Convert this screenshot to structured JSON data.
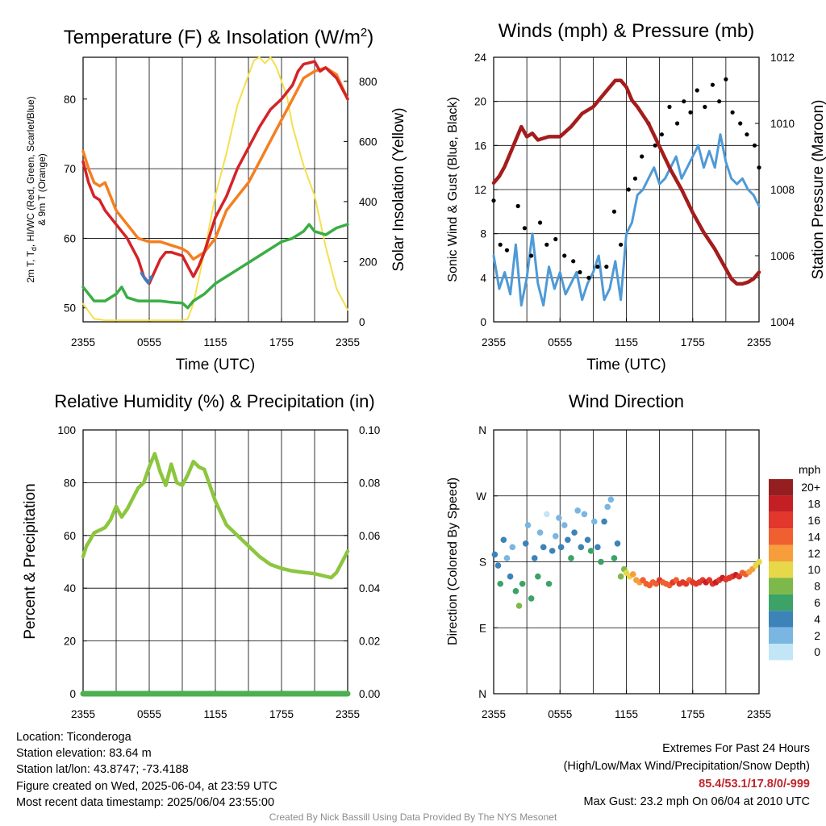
{
  "colors": {
    "temp_2m": "#d42327",
    "dewpoint": "#3aae44",
    "heat_index_windchill": "#3f7cc0",
    "temp_9m": "#f57f20",
    "insolation": "#f5df4d",
    "wind_speed": "#4f9ad6",
    "wind_gust": "#000000",
    "pressure": "#a51c1c",
    "humidity": "#8cc63e",
    "precipitation": "#4caf50"
  },
  "chart_data": [
    {
      "id": "temp",
      "type": "line",
      "title_main": "Temperature (F) & Insolation (W/m",
      "title_sup": "2",
      "title_end": ")",
      "xlabel": "Time (UTC)",
      "ylabel_lines": [
        "2m T, T",
        "HI/WC (Red, Green, Scarlet/Blue)",
        "& 9m T (Orange)"
      ],
      "ylabel_sub": "d",
      "y2label": "Solar Insolation (Yellow)",
      "xlim": [
        0,
        24
      ],
      "ylim": [
        48,
        86
      ],
      "y2lim": [
        0,
        880
      ],
      "xticks": [
        0,
        6,
        12,
        18,
        24
      ],
      "xticklabels": [
        "2355",
        "0555",
        "1155",
        "1755",
        "2355"
      ],
      "yticks": [
        50,
        60,
        70,
        80
      ],
      "y2ticks": [
        0,
        200,
        400,
        600,
        800
      ],
      "grid": true,
      "series": [
        {
          "key": "insolation",
          "axis": "y2",
          "x": [
            0,
            1,
            2,
            3,
            4,
            5,
            6,
            7,
            8,
            9,
            9.5,
            10,
            11,
            12,
            13,
            14,
            15,
            15.5,
            16,
            16.5,
            17,
            17.5,
            18,
            18.5,
            19,
            20,
            21,
            22,
            23,
            24
          ],
          "y": [
            60,
            10,
            5,
            5,
            5,
            5,
            5,
            5,
            5,
            5,
            10,
            60,
            230,
            420,
            560,
            720,
            820,
            870,
            880,
            860,
            880,
            850,
            800,
            750,
            650,
            520,
            420,
            250,
            110,
            40
          ]
        },
        {
          "key": "temp_9m",
          "axis": "y",
          "x": [
            0,
            0.5,
            1,
            1.5,
            2,
            3,
            4,
            5,
            6,
            7,
            8,
            9,
            9.5,
            10,
            10.5,
            11,
            12,
            13,
            14,
            15,
            16,
            17,
            18,
            19,
            20,
            21,
            22,
            23,
            24
          ],
          "y": [
            72.5,
            70,
            68,
            67.5,
            68,
            64,
            62,
            60,
            59.5,
            59.5,
            59,
            58.5,
            58,
            57,
            57.5,
            58,
            60,
            64,
            66,
            68,
            71,
            74,
            77,
            80,
            83,
            84,
            84.5,
            83.5,
            80
          ]
        },
        {
          "key": "temp_2m",
          "axis": "y",
          "x": [
            0,
            0.5,
            1,
            1.5,
            2,
            3,
            4,
            5,
            5.5,
            6,
            7,
            7.5,
            8,
            9,
            9.5,
            10,
            10.5,
            11,
            12,
            13,
            14,
            15,
            16,
            17,
            18,
            19,
            19.5,
            20,
            21,
            21.5,
            22,
            23,
            24
          ],
          "y": [
            71,
            68,
            66,
            65.5,
            64,
            62,
            60,
            57,
            54.5,
            53.5,
            57,
            58,
            58,
            57.5,
            56,
            54.5,
            56,
            58,
            63,
            66,
            70,
            73,
            76,
            78.5,
            80,
            82,
            84,
            85,
            85.4,
            84,
            84.5,
            83,
            80
          ]
        },
        {
          "key": "heat_index_windchill",
          "axis": "y",
          "x": [
            5.3,
            5.6,
            5.9,
            6.2
          ],
          "y": [
            55,
            54.2,
            53.6,
            54.5
          ]
        },
        {
          "key": "dewpoint",
          "axis": "y",
          "x": [
            0,
            1,
            2,
            3,
            3.5,
            4,
            5,
            6,
            7,
            8,
            9,
            9.5,
            10,
            11,
            12,
            13,
            14,
            15,
            16,
            17,
            18,
            19,
            20,
            20.5,
            21,
            22,
            23,
            24
          ],
          "y": [
            53,
            51,
            51,
            52,
            53,
            51.5,
            51,
            51,
            51,
            50.8,
            50.7,
            50,
            51,
            52,
            53.5,
            54.5,
            55.5,
            56.5,
            57.5,
            58.5,
            59.5,
            60,
            61,
            62,
            61,
            60.5,
            61.5,
            62
          ]
        }
      ]
    },
    {
      "id": "wind",
      "type": "line",
      "title": "Winds (mph) & Pressure (mb)",
      "xlabel": "Time (UTC)",
      "ylabel": "Sonic Wind & Gust (Blue, Black)",
      "y2label": "Station Pressure (Maroon)",
      "xlim": [
        0,
        24
      ],
      "ylim": [
        0,
        24
      ],
      "y2lim": [
        1004,
        1012
      ],
      "xticks": [
        0,
        6,
        12,
        18,
        24
      ],
      "xticklabels": [
        "2355",
        "0555",
        "1155",
        "1755",
        "2355"
      ],
      "yticks": [
        0,
        4,
        8,
        12,
        16,
        20,
        24
      ],
      "y2ticks": [
        1004,
        1006,
        1008,
        1010,
        1012
      ],
      "grid": true,
      "series": [
        {
          "key": "wind_speed",
          "axis": "y",
          "x": [
            0,
            0.5,
            1,
            1.5,
            2,
            2.5,
            3,
            3.5,
            4,
            4.5,
            5,
            5.5,
            6,
            6.5,
            7,
            7.5,
            8,
            8.5,
            9,
            9.5,
            10,
            10.5,
            11,
            11.5,
            12,
            12.5,
            13,
            13.5,
            14,
            14.5,
            15,
            15.5,
            16,
            16.5,
            17,
            17.5,
            18,
            18.5,
            19,
            19.5,
            20,
            20.5,
            21,
            21.5,
            22,
            22.5,
            23,
            23.5,
            24
          ],
          "y": [
            6,
            3,
            4.5,
            2.5,
            7,
            1.5,
            4,
            8,
            3.5,
            1.5,
            5,
            3,
            4.5,
            2.5,
            3.5,
            4.5,
            2,
            3.5,
            4.5,
            6,
            2,
            3,
            5.5,
            2,
            8,
            9,
            11.5,
            12,
            13,
            14,
            12.5,
            13,
            14,
            15,
            13,
            14,
            15,
            16,
            14,
            15.5,
            14,
            17,
            14.5,
            13,
            12.5,
            13,
            12,
            11.5,
            10.5
          ]
        },
        {
          "key": "wind_gust",
          "axis": "y",
          "mode": "markers",
          "x": [
            0,
            0.6,
            1.2,
            2.2,
            2.8,
            3.4,
            4.2,
            4.8,
            5.6,
            6.4,
            7.2,
            7.8,
            8.6,
            9.4,
            10.2,
            10.9,
            11.5,
            12.2,
            12.8,
            13.4,
            14.0,
            14.6,
            15.2,
            15.9,
            16.6,
            17.2,
            17.8,
            18.4,
            19.1,
            19.8,
            20.4,
            21.0,
            21.6,
            22.3,
            22.9,
            23.6,
            24
          ],
          "y": [
            11,
            7,
            6.5,
            10.5,
            8.5,
            6,
            9,
            7,
            7.5,
            6,
            5.5,
            4.5,
            4,
            5,
            5,
            10,
            7,
            12,
            13,
            15,
            18,
            16,
            17,
            19.5,
            18,
            20,
            19,
            21,
            19.5,
            21.5,
            20,
            22,
            19,
            18,
            17,
            16,
            14
          ]
        },
        {
          "key": "pressure",
          "axis": "y2",
          "x": [
            0,
            0.5,
            1,
            1.5,
            2,
            2.5,
            3,
            3.5,
            4,
            5,
            6,
            7,
            8,
            9,
            10,
            11,
            11.5,
            12,
            12.5,
            13,
            14,
            15,
            16,
            17,
            18,
            19,
            20,
            21,
            21.5,
            22,
            22.5,
            23,
            23.5,
            24
          ],
          "y": [
            1008.2,
            1008.4,
            1008.7,
            1009.1,
            1009.5,
            1009.9,
            1009.6,
            1009.7,
            1009.5,
            1009.6,
            1009.6,
            1009.9,
            1010.3,
            1010.5,
            1010.9,
            1011.3,
            1011.3,
            1011.1,
            1010.7,
            1010.5,
            1010.0,
            1009.3,
            1008.6,
            1008.0,
            1007.3,
            1006.7,
            1006.2,
            1005.6,
            1005.3,
            1005.15,
            1005.15,
            1005.2,
            1005.3,
            1005.5
          ]
        }
      ]
    },
    {
      "id": "rh",
      "type": "line",
      "title": "Relative Humidity (%) & Precipitation (in)",
      "ylabel": "Percent & Precipitation",
      "xlim": [
        0,
        24
      ],
      "ylim": [
        0,
        100
      ],
      "y2lim": [
        0,
        0.1
      ],
      "xticks": [
        0,
        6,
        12,
        18,
        24
      ],
      "xticklabels": [
        "2355",
        "0555",
        "1155",
        "1755",
        "2355"
      ],
      "yticks": [
        0,
        20,
        40,
        60,
        80,
        100
      ],
      "y2ticks": [
        0,
        0.02,
        0.04,
        0.06,
        0.08,
        0.1
      ],
      "y2ticklabels": [
        "0.00",
        "0.02",
        "0.04",
        "0.06",
        "0.08",
        "0.10"
      ],
      "grid": true,
      "series": [
        {
          "key": "humidity",
          "axis": "y",
          "x": [
            0,
            0.3,
            0.6,
            1,
            1.5,
            2,
            2.5,
            3,
            3.5,
            4,
            4.5,
            5,
            5.5,
            6,
            6.5,
            7,
            7.5,
            8,
            8.5,
            9,
            9.5,
            10,
            10.5,
            11,
            11.5,
            12,
            13,
            14,
            15,
            16,
            17,
            18,
            19,
            20,
            21,
            22,
            22.5,
            23,
            23.5,
            24
          ],
          "y": [
            52,
            56,
            58,
            61,
            62,
            63,
            66,
            71,
            67,
            70,
            74,
            78,
            80,
            86,
            91,
            84,
            79,
            87,
            80,
            79,
            83,
            88,
            86,
            85,
            79,
            73,
            64,
            60,
            56,
            52,
            49,
            47.5,
            46.5,
            46,
            45.5,
            44.5,
            44,
            46,
            50,
            54
          ]
        },
        {
          "key": "precipitation",
          "axis": "y2",
          "x": [
            0,
            24
          ],
          "y": [
            0,
            0
          ]
        }
      ]
    },
    {
      "id": "dir",
      "type": "scatter",
      "title": "Wind Direction",
      "ylabel": "Direction (Colored By Speed)",
      "xlim": [
        0,
        24
      ],
      "ylim": [
        0,
        360
      ],
      "xticks": [
        0,
        6,
        12,
        18,
        24
      ],
      "xticklabels": [
        "2355",
        "0555",
        "1155",
        "1755",
        "2355"
      ],
      "yticks": [
        0,
        90,
        180,
        270,
        360
      ],
      "yticklabels": [
        "N",
        "E",
        "S",
        "W",
        "N"
      ],
      "grid": true,
      "legend_title": "mph",
      "legend_labels": [
        "20+",
        "18",
        "16",
        "14",
        "12",
        "10",
        "8",
        "6",
        "4",
        "2",
        "0"
      ],
      "legend_colors": [
        "#951f20",
        "#c51f26",
        "#e2372a",
        "#ef5f2f",
        "#f79d3c",
        "#e6d849",
        "#7db84a",
        "#3aa365",
        "#3c83b8",
        "#7ab6e2",
        "#c3e6f7"
      ],
      "x": [
        0.1,
        0.4,
        0.6,
        0.9,
        1.2,
        1.5,
        1.7,
        2.0,
        2.3,
        2.6,
        2.9,
        3.1,
        3.4,
        3.7,
        4.0,
        4.2,
        4.5,
        4.8,
        5.0,
        5.3,
        5.6,
        5.9,
        6.1,
        6.4,
        6.7,
        7.0,
        7.3,
        7.6,
        7.9,
        8.2,
        8.5,
        8.8,
        9.1,
        9.4,
        9.7,
        10.0,
        10.3,
        10.6,
        10.9,
        11.2,
        11.5,
        11.8,
        12.0,
        12.3,
        12.6,
        12.9,
        13.2,
        13.5,
        13.8,
        14.1,
        14.4,
        14.7,
        15.0,
        15.3,
        15.6,
        15.9,
        16.2,
        16.5,
        16.8,
        17.1,
        17.4,
        17.7,
        18.0,
        18.3,
        18.6,
        18.9,
        19.2,
        19.5,
        19.8,
        20.1,
        20.4,
        20.7,
        21.0,
        21.3,
        21.6,
        21.9,
        22.2,
        22.5,
        22.8,
        23.1,
        23.4,
        23.7,
        24.0
      ],
      "y": [
        190,
        175,
        150,
        210,
        185,
        160,
        200,
        140,
        120,
        150,
        205,
        230,
        130,
        185,
        160,
        220,
        200,
        245,
        150,
        195,
        215,
        240,
        200,
        230,
        210,
        185,
        220,
        250,
        200,
        245,
        210,
        195,
        235,
        200,
        180,
        235,
        255,
        265,
        185,
        205,
        160,
        170,
        165,
        160,
        163,
        155,
        152,
        155,
        150,
        148,
        152,
        150,
        155,
        152,
        150,
        148,
        152,
        155,
        150,
        152,
        150,
        155,
        152,
        150,
        152,
        155,
        152,
        155,
        150,
        152,
        155,
        158,
        156,
        158,
        160,
        162,
        160,
        165,
        163,
        166,
        170,
        175,
        180
      ],
      "speed": [
        4,
        3,
        5,
        3,
        2,
        4,
        1,
        6,
        7,
        5,
        3,
        2,
        6,
        4,
        5,
        1,
        3,
        0,
        6,
        4,
        2,
        1,
        3,
        2,
        4,
        5,
        3,
        1,
        4,
        2,
        3,
        5,
        2,
        4,
        6,
        3,
        2,
        1,
        5,
        4,
        7,
        8,
        9,
        10,
        11,
        12,
        12,
        13,
        13,
        14,
        13,
        14,
        15,
        14,
        13,
        14,
        15,
        14,
        15,
        16,
        15,
        14,
        15,
        16,
        15,
        16,
        17,
        16,
        15,
        17,
        16,
        18,
        16,
        15,
        16,
        17,
        15,
        14,
        13,
        12,
        11,
        10,
        10
      ]
    }
  ],
  "station": {
    "location": "Location: Ticonderoga",
    "elevation": "Station elevation: 83.64 m",
    "latlon": "Station lat/lon: 43.8747; -73.4188",
    "created": "Figure created on Wed, 2025-06-04, at 23:59 UTC",
    "recent": "Most recent data timestamp: 2025/06/04 23:55:00"
  },
  "extremes": {
    "title": "Extremes For Past 24 Hours",
    "legend": "(High/Low/Max Wind/Precipitation/Snow Depth)",
    "values": "85.4/53.1/17.8/0/-999",
    "max_gust": "Max Gust: 23.2 mph On 06/04 at 2010 UTC"
  },
  "credit": "Created By Nick Bassill Using Data Provided By The NYS Mesonet"
}
